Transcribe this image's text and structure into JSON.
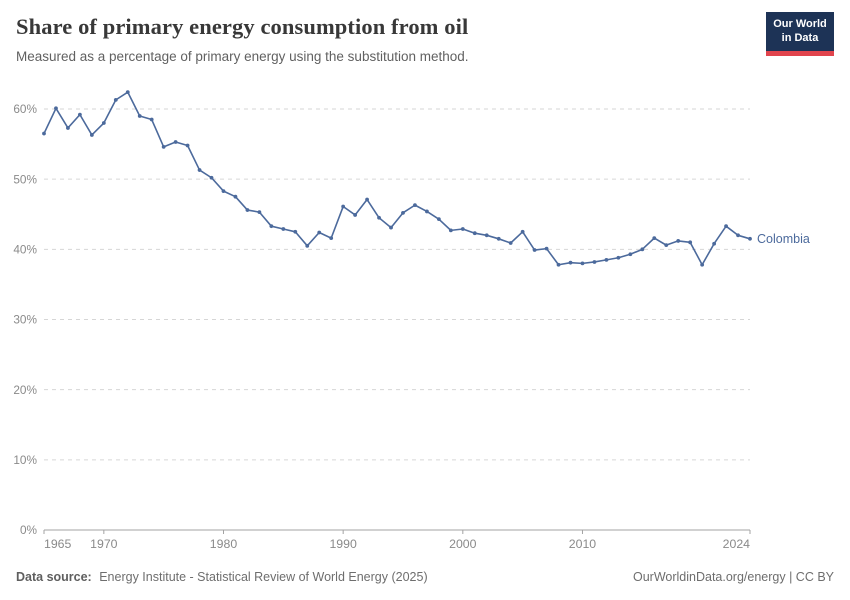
{
  "header": {
    "title": "Share of primary energy consumption from oil",
    "subtitle": "Measured as a percentage of primary energy using the substitution method.",
    "logo": {
      "line1": "Our World",
      "line2": "in Data",
      "bg_color": "#1d3356",
      "stripe_color": "#e1444d"
    }
  },
  "footer": {
    "source_label": "Data source:",
    "source_text": "Energy Institute - Statistical Review of World Energy (2025)",
    "credit": "OurWorldinData.org/energy | CC BY"
  },
  "chart_data": {
    "type": "line",
    "title": "Share of primary energy consumption from oil",
    "subtitle": "Measured as a percentage of primary energy using the substitution method.",
    "xlabel": "",
    "ylabel": "",
    "xlim": [
      1965,
      2024
    ],
    "ylim": [
      0,
      63
    ],
    "grid": "horizontal-dashed",
    "legend_position": "end-of-line-label",
    "x_ticks": [
      1965,
      1970,
      1980,
      1990,
      2000,
      2010,
      2024
    ],
    "y_ticks": [
      0,
      10,
      20,
      30,
      40,
      50,
      60
    ],
    "y_tick_labels": [
      "0%",
      "10%",
      "20%",
      "30%",
      "40%",
      "50%",
      "60%"
    ],
    "series": [
      {
        "name": "Colombia",
        "color": "#4C6A9C",
        "x": [
          1965,
          1966,
          1967,
          1968,
          1969,
          1970,
          1971,
          1972,
          1973,
          1974,
          1975,
          1976,
          1977,
          1978,
          1979,
          1980,
          1981,
          1982,
          1983,
          1984,
          1985,
          1986,
          1987,
          1988,
          1989,
          1990,
          1991,
          1992,
          1993,
          1994,
          1995,
          1996,
          1997,
          1998,
          1999,
          2000,
          2001,
          2002,
          2003,
          2004,
          2005,
          2006,
          2007,
          2008,
          2009,
          2010,
          2011,
          2012,
          2013,
          2014,
          2015,
          2016,
          2017,
          2018,
          2019,
          2020,
          2021,
          2022,
          2023,
          2024
        ],
        "values": [
          56.5,
          60.1,
          57.3,
          59.2,
          56.3,
          58.0,
          61.3,
          62.4,
          59.0,
          58.5,
          54.6,
          55.3,
          54.8,
          51.3,
          50.2,
          48.3,
          47.5,
          45.6,
          45.3,
          43.3,
          42.9,
          42.5,
          40.5,
          42.4,
          41.6,
          46.1,
          44.9,
          47.1,
          44.5,
          43.1,
          45.2,
          46.3,
          45.4,
          44.3,
          42.7,
          42.9,
          42.3,
          42.0,
          41.5,
          40.9,
          42.5,
          39.9,
          40.1,
          37.8,
          38.1,
          38.0,
          38.2,
          38.5,
          38.8,
          39.3,
          40.0,
          41.6,
          40.6,
          41.2,
          41.0,
          37.8,
          40.8,
          43.3,
          42.0,
          41.5
        ]
      }
    ],
    "entity_label": "Colombia"
  }
}
